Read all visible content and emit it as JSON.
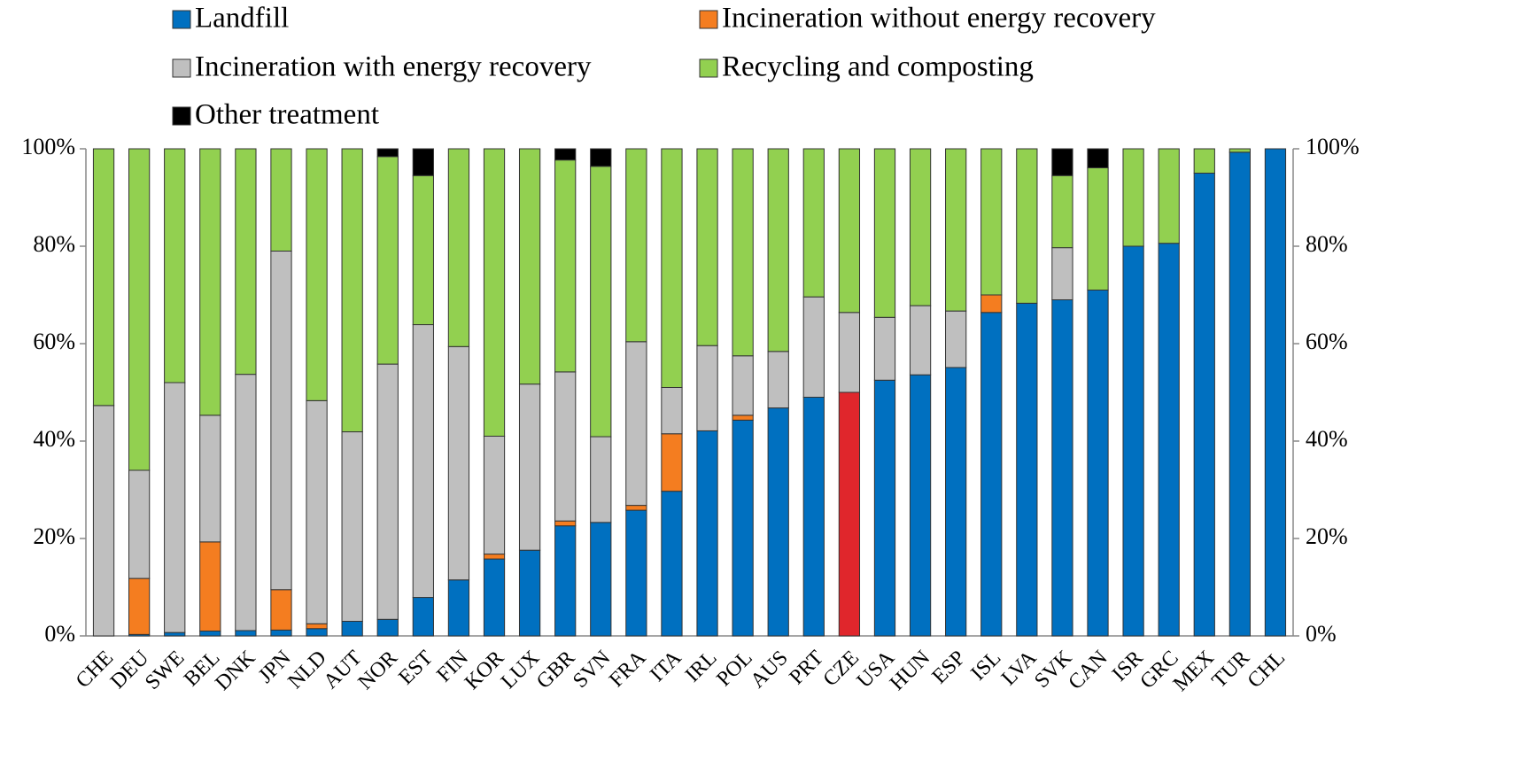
{
  "chart_data": {
    "type": "stacked_bar",
    "categories": [
      "CHE",
      "DEU",
      "SWE",
      "BEL",
      "DNK",
      "JPN",
      "NLD",
      "AUT",
      "NOR",
      "EST",
      "FIN",
      "KOR",
      "LUX",
      "GBR",
      "SVN",
      "FRA",
      "ITA",
      "IRL",
      "POL",
      "AUS",
      "PRT",
      "CZE",
      "USA",
      "HUN",
      "ESP",
      "ISL",
      "LVA",
      "SVK",
      "CAN",
      "ISR",
      "GRC",
      "MEX",
      "TUR",
      "CHL"
    ],
    "series": [
      {
        "name": "Landfill",
        "color": "#0070c0",
        "point_colors": [
          "#0070c0",
          "#0070c0",
          "#0070c0",
          "#0070c0",
          "#0070c0",
          "#0070c0",
          "#0070c0",
          "#0070c0",
          "#0070c0",
          "#0070c0",
          "#0070c0",
          "#0070c0",
          "#0070c0",
          "#0070c0",
          "#0070c0",
          "#0070c0",
          "#0070c0",
          "#0070c0",
          "#0070c0",
          "#0070c0",
          "#0070c0",
          "#e0262c",
          "#0070c0",
          "#0070c0",
          "#0070c0",
          "#0070c0",
          "#0070c0",
          "#0070c0",
          "#0070c0",
          "#0070c0",
          "#0070c0",
          "#0070c0",
          "#0070c0",
          "#0070c0"
        ],
        "values": [
          0,
          0.3,
          0.7,
          1,
          1.1,
          1.2,
          1.5,
          3,
          3.4,
          7.9,
          11.5,
          15.8,
          17.6,
          22.6,
          23.3,
          25.8,
          29.7,
          42.1,
          44.3,
          46.8,
          49,
          50,
          52.5,
          53.6,
          55.1,
          66.4,
          68.3,
          69,
          71,
          80,
          80.6,
          95,
          99.3,
          100
        ]
      },
      {
        "name": "Incineration without energy recovery",
        "color": "#f47d20",
        "values": [
          0,
          11.5,
          0,
          18.3,
          0,
          8.3,
          1,
          0,
          0,
          0,
          0,
          1,
          0,
          1,
          0,
          1,
          11.8,
          0,
          1,
          0,
          0,
          0,
          0,
          0,
          0,
          3.6,
          0,
          0,
          0,
          0,
          0,
          0,
          0,
          0
        ]
      },
      {
        "name": "Incineration with energy recovery",
        "color": "#bfbfbf",
        "values": [
          47.3,
          22.2,
          51.3,
          26,
          52.6,
          69.5,
          45.8,
          38.9,
          52.4,
          56,
          47.9,
          24.2,
          34.1,
          30.6,
          17.6,
          33.6,
          9.5,
          17.5,
          12.2,
          11.6,
          20.6,
          16.4,
          12.9,
          14.2,
          11.6,
          0,
          0,
          10.7,
          0,
          0,
          0,
          0,
          0,
          0
        ]
      },
      {
        "name": "Recycling and composting",
        "color": "#92d050",
        "values": [
          52.7,
          66,
          48,
          54.7,
          46.3,
          21,
          51.7,
          58.1,
          42.6,
          30.6,
          40.6,
          59,
          48.3,
          43.5,
          55.5,
          39.6,
          49,
          40.4,
          42.5,
          41.6,
          30.4,
          33.6,
          34.6,
          32.2,
          33.3,
          30,
          31.7,
          14.8,
          25.1,
          20,
          19.4,
          5,
          0.7,
          0
        ]
      },
      {
        "name": "Other treatment",
        "color": "#000000",
        "values": [
          0,
          0,
          0,
          0,
          0,
          0,
          0,
          0,
          1.6,
          5.5,
          0,
          0,
          0,
          2.3,
          3.6,
          0,
          0,
          0,
          0,
          0,
          0,
          0,
          0,
          0,
          0,
          0,
          0,
          5.5,
          3.9,
          0,
          0,
          0,
          0,
          0
        ]
      }
    ],
    "ylim": [
      0,
      100
    ],
    "yticks": [
      {
        "value": 0,
        "label": "0%"
      },
      {
        "value": 20,
        "label": "20%"
      },
      {
        "value": 40,
        "label": "40%"
      },
      {
        "value": 60,
        "label": "60%"
      },
      {
        "value": 80,
        "label": "80%"
      },
      {
        "value": 100,
        "label": "100%"
      }
    ],
    "y2lim": [
      0,
      100
    ],
    "y2ticks": [
      {
        "value": 0,
        "label": "0%"
      },
      {
        "value": 20,
        "label": "20%"
      },
      {
        "value": 40,
        "label": "40%"
      },
      {
        "value": 60,
        "label": "60%"
      },
      {
        "value": 80,
        "label": "80%"
      },
      {
        "value": 100,
        "label": "100%"
      }
    ],
    "grid": false
  }
}
